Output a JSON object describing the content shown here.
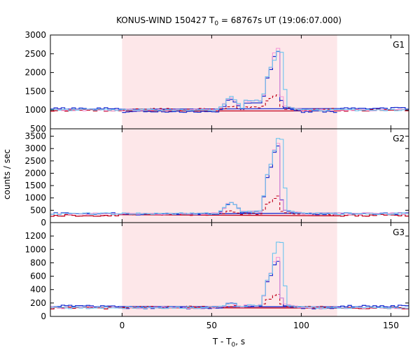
{
  "chart_data": {
    "type": "line",
    "title": {
      "prefix": "KONUS-WIND 150427 T",
      "subscript": "0",
      "suffix": " = 68767s UT (19:06:07.000)"
    },
    "xlabel": {
      "prefix": "T - T",
      "subscript": "0",
      "suffix": ", s"
    },
    "ylabel": "counts / sec",
    "xlim": [
      -40,
      160
    ],
    "xticks": [
      0,
      50,
      100,
      150
    ],
    "xtick_labels": [
      "0",
      "50",
      "100",
      "150"
    ],
    "highlight": {
      "x_start": 0,
      "x_end": 120,
      "color": "#fde7e9"
    },
    "colors": {
      "trigger_light": "#f39ad8",
      "trigger_bright": "#6cc4ee",
      "background_dark": "#c0001c",
      "background_blue": "#1a2fd0"
    },
    "panels": [
      {
        "label": "G1",
        "ylim": [
          500,
          3000
        ],
        "yticks": [
          500,
          1000,
          1500,
          2000,
          2500,
          3000
        ],
        "ytick_labels": [
          "500",
          "1000",
          "1500",
          "2000",
          "2500",
          "3000"
        ],
        "level": 1000,
        "bg_level": 1020,
        "peak_light": 2650,
        "peak_bright": 2550,
        "bump": 1350
      },
      {
        "label": "G2",
        "ylim": [
          0,
          3800
        ],
        "yticks": [
          0,
          500,
          1000,
          1500,
          2000,
          2500,
          3000,
          3500
        ],
        "ytick_labels": [
          "0",
          "500",
          "1000",
          "1500",
          "2000",
          "2500",
          "3000",
          "3500"
        ],
        "level": 360,
        "bg_level": 330,
        "peak_light": 3200,
        "peak_bright": 3380,
        "bump": 850
      },
      {
        "label": "G3",
        "ylim": [
          0,
          1400
        ],
        "yticks": [
          0,
          200,
          400,
          600,
          800,
          1000,
          1200
        ],
        "ytick_labels": [
          "0",
          "200",
          "400",
          "600",
          "800",
          "1000",
          "1200"
        ],
        "level": 130,
        "bg_level": 140,
        "peak_light": 870,
        "peak_bright": 1100,
        "bump": 200
      }
    ]
  }
}
